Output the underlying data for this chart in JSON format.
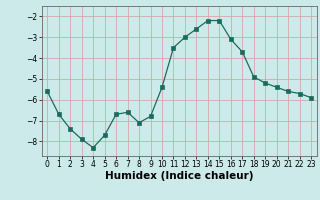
{
  "x": [
    0,
    1,
    2,
    3,
    4,
    5,
    6,
    7,
    8,
    9,
    10,
    11,
    12,
    13,
    14,
    15,
    16,
    17,
    18,
    19,
    20,
    21,
    22,
    23
  ],
  "y": [
    -5.6,
    -6.7,
    -7.4,
    -7.9,
    -8.3,
    -7.7,
    -6.7,
    -6.6,
    -7.1,
    -6.8,
    -5.4,
    -3.5,
    -3.0,
    -2.6,
    -2.2,
    -2.2,
    -3.1,
    -3.7,
    -4.9,
    -5.2,
    -5.4,
    -5.6,
    -5.7,
    -5.9
  ],
  "xlabel": "Humidex (Indice chaleur)",
  "xlim": [
    -0.5,
    23.5
  ],
  "ylim": [
    -8.7,
    -1.5
  ],
  "yticks": [
    -8,
    -7,
    -6,
    -5,
    -4,
    -3,
    -2
  ],
  "xticks": [
    0,
    1,
    2,
    3,
    4,
    5,
    6,
    7,
    8,
    9,
    10,
    11,
    12,
    13,
    14,
    15,
    16,
    17,
    18,
    19,
    20,
    21,
    22,
    23
  ],
  "line_color": "#1a6b5e",
  "marker_color": "#1a6b5e",
  "bg_color": "#cdeaea",
  "grid_color": "#b8d4d4",
  "tick_fontsize": 5.5,
  "xlabel_fontsize": 7.5
}
